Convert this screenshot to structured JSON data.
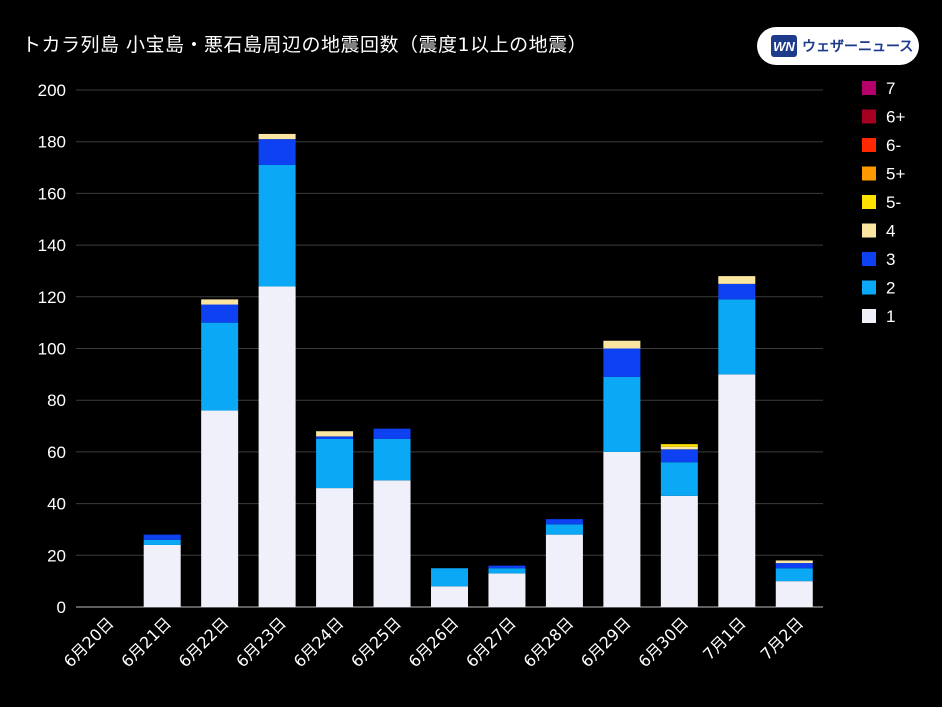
{
  "title": "トカラ列島 小宝島・悪石島周辺の地震回数（震度1以上の地震）",
  "brand": {
    "logo_text": "WN",
    "name": "ウェザーニュース",
    "color": "#1e3a8a"
  },
  "chart_data": {
    "type": "bar",
    "stacked": true,
    "title": "トカラ列島 小宝島・悪石島周辺の地震回数（震度1以上の地震）",
    "xlabel": "",
    "ylabel": "",
    "ylim": [
      0,
      200
    ],
    "yticks": [
      0,
      20,
      40,
      60,
      80,
      100,
      120,
      140,
      160,
      180,
      200
    ],
    "grid": true,
    "legend_position": "right",
    "categories": [
      "6月20日",
      "6月21日",
      "6月22日",
      "6月23日",
      "6月24日",
      "6月25日",
      "6月26日",
      "6月27日",
      "6月28日",
      "6月29日",
      "6月30日",
      "7月1日",
      "7月2日"
    ],
    "series": [
      {
        "name": "1",
        "color": "#f0f0fa",
        "values": [
          0,
          24,
          76,
          124,
          46,
          49,
          8,
          13,
          28,
          60,
          43,
          90,
          10
        ]
      },
      {
        "name": "2",
        "color": "#0aa8f5",
        "values": [
          0,
          2,
          34,
          47,
          19,
          16,
          7,
          2,
          4,
          29,
          13,
          29,
          5
        ]
      },
      {
        "name": "3",
        "color": "#0d41f2",
        "values": [
          0,
          2,
          7,
          10,
          1,
          4,
          0,
          1,
          2,
          11,
          5,
          6,
          2
        ]
      },
      {
        "name": "4",
        "color": "#fae6a0",
        "values": [
          0,
          0,
          2,
          2,
          2,
          0,
          0,
          0,
          0,
          3,
          1,
          3,
          1
        ]
      },
      {
        "name": "5-",
        "color": "#ffe100",
        "values": [
          0,
          0,
          0,
          0,
          0,
          0,
          0,
          0,
          0,
          0,
          1,
          0,
          0
        ]
      },
      {
        "name": "5+",
        "color": "#ff9900",
        "values": [
          0,
          0,
          0,
          0,
          0,
          0,
          0,
          0,
          0,
          0,
          0,
          0,
          0
        ]
      },
      {
        "name": "6-",
        "color": "#ff2800",
        "values": [
          0,
          0,
          0,
          0,
          0,
          0,
          0,
          0,
          0,
          0,
          0,
          0,
          0
        ]
      },
      {
        "name": "6+",
        "color": "#a50021",
        "values": [
          0,
          0,
          0,
          0,
          0,
          0,
          0,
          0,
          0,
          0,
          0,
          0,
          0
        ]
      },
      {
        "name": "7",
        "color": "#b40068",
        "values": [
          0,
          0,
          0,
          0,
          0,
          0,
          0,
          0,
          0,
          0,
          0,
          0,
          0
        ]
      }
    ],
    "legend_order": [
      "7",
      "6+",
      "6-",
      "5+",
      "5-",
      "4",
      "3",
      "2",
      "1"
    ]
  }
}
